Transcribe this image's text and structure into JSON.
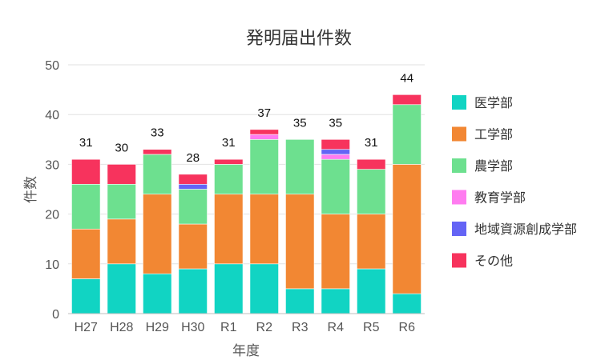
{
  "chart_data": {
    "type": "bar",
    "stacked": true,
    "title": "発明届出件数",
    "xlabel": "年度",
    "ylabel": "件数",
    "ylim": [
      0,
      50
    ],
    "yticks": [
      0,
      10,
      20,
      30,
      40,
      50
    ],
    "grid": true,
    "legend_position": "right",
    "categories": [
      "H27",
      "H28",
      "H29",
      "H30",
      "R1",
      "R2",
      "R3",
      "R4",
      "R5",
      "R6"
    ],
    "totals": [
      31,
      30,
      33,
      28,
      31,
      37,
      35,
      35,
      31,
      44
    ],
    "series": [
      {
        "name": "医学部",
        "color": "#11d4c3",
        "values": [
          7,
          10,
          8,
          9,
          10,
          10,
          5,
          5,
          9,
          4
        ]
      },
      {
        "name": "工学部",
        "color": "#f28733",
        "values": [
          10,
          9,
          16,
          9,
          14,
          14,
          19,
          15,
          11,
          26
        ]
      },
      {
        "name": "農学部",
        "color": "#6de08f",
        "values": [
          9,
          7,
          8,
          7,
          6,
          11,
          11,
          11,
          9,
          12
        ]
      },
      {
        "name": "教育学部",
        "color": "#ff7cf0",
        "values": [
          0,
          0,
          0,
          0,
          0,
          1,
          0,
          1,
          0,
          0
        ]
      },
      {
        "name": "地域資源創成学部",
        "color": "#6464f5",
        "values": [
          0,
          0,
          0,
          1,
          0,
          0,
          0,
          1,
          0,
          0
        ]
      },
      {
        "name": "その他",
        "color": "#f7335d",
        "values": [
          5,
          4,
          1,
          2,
          1,
          1,
          0,
          2,
          2,
          2
        ]
      }
    ]
  }
}
